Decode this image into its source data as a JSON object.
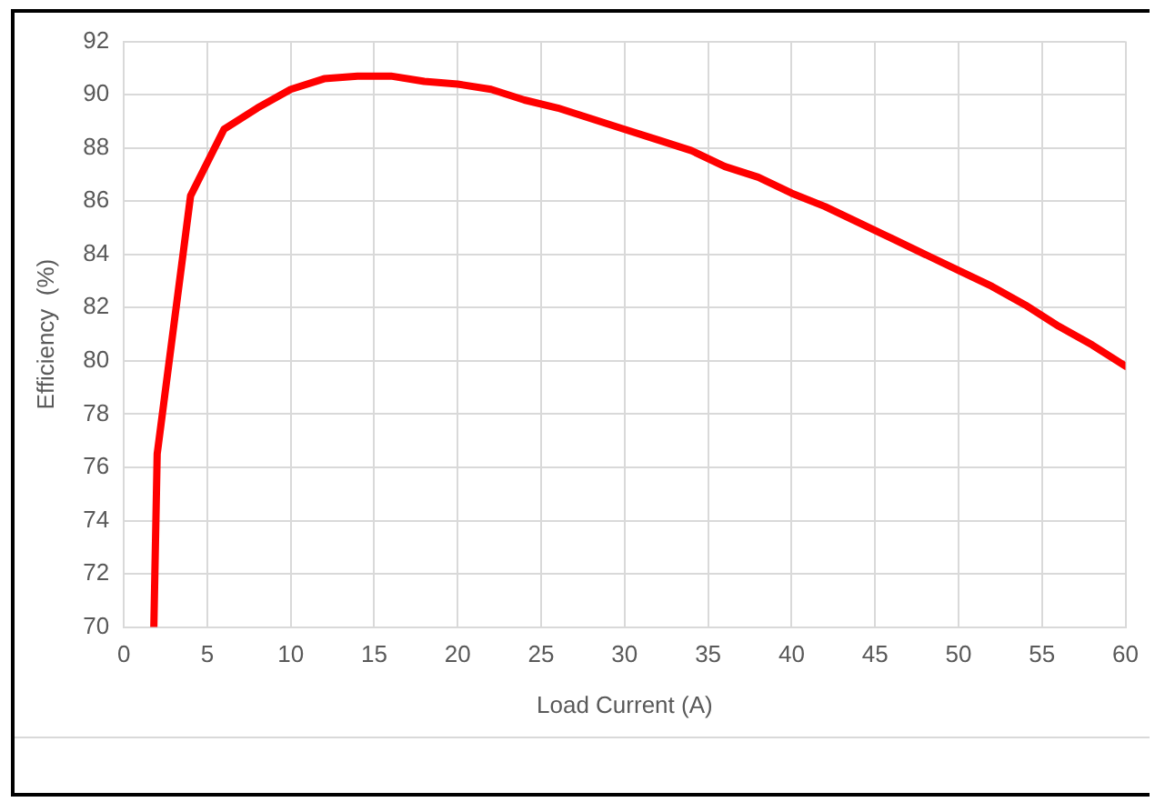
{
  "chart_data": {
    "type": "line",
    "xlabel": "Load Current (A)",
    "ylabel": "Efficiency  (%)",
    "series": [
      {
        "color": "#ff0000",
        "x": [
          1.8,
          2,
          4,
          6,
          8,
          10,
          12,
          14,
          16,
          18,
          20,
          22,
          24,
          26,
          28,
          30,
          32,
          34,
          36,
          38,
          40,
          42,
          44,
          46,
          48,
          50,
          52,
          54,
          56,
          58,
          60
        ],
        "values": [
          70,
          76.5,
          86.2,
          88.7,
          89.5,
          90.2,
          90.6,
          90.7,
          90.7,
          90.5,
          90.4,
          90.2,
          89.8,
          89.5,
          89.1,
          88.7,
          88.3,
          87.9,
          87.3,
          86.9,
          86.3,
          85.8,
          85.2,
          84.6,
          84.0,
          83.4,
          82.8,
          82.1,
          81.3,
          80.6,
          79.8
        ]
      }
    ],
    "xlim": [
      0,
      60
    ],
    "xticks": [
      0,
      5,
      10,
      15,
      20,
      25,
      30,
      35,
      40,
      45,
      50,
      55,
      60
    ],
    "ylim": [
      70,
      92
    ],
    "yticks": [
      70,
      72,
      74,
      76,
      78,
      80,
      82,
      84,
      86,
      88,
      90,
      92
    ],
    "grid": true,
    "legend": false,
    "marker": "none",
    "line_style": "solid"
  }
}
